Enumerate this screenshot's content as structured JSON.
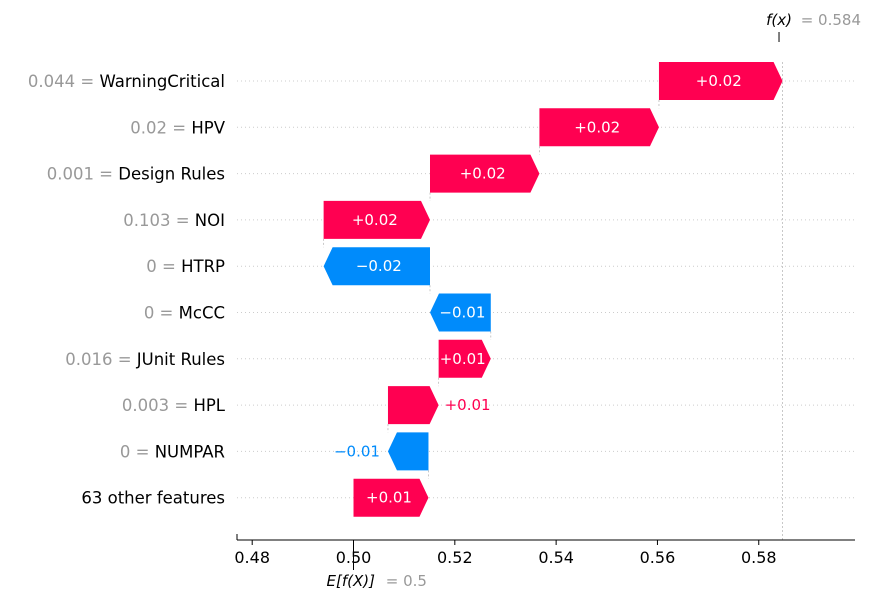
{
  "chart_data": {
    "type": "waterfall",
    "title": "",
    "xlabel": "",
    "ylabel": "",
    "xlim": [
      0.477,
      0.599
    ],
    "xticks": [
      0.48,
      0.5,
      0.52,
      0.54,
      0.56,
      0.58
    ],
    "xtick_labels": [
      "0.48",
      "0.50",
      "0.52",
      "0.54",
      "0.56",
      "0.58"
    ],
    "base_value": 0.5,
    "base_label": "E[f(X)]",
    "base_value_text": "= 0.5",
    "output_value": 0.584,
    "output_label": "f(x)",
    "output_value_text": "= 0.584",
    "features": [
      {
        "value_text": "0.044 =",
        "name": "WarningCritical",
        "shap": 0.0244,
        "label": "+0.02",
        "label_inside": true
      },
      {
        "value_text": "0.02 =",
        "name": "HPV",
        "shap": 0.0236,
        "label": "+0.02",
        "label_inside": true
      },
      {
        "value_text": "0.001 =",
        "name": "Design Rules",
        "shap": 0.0216,
        "label": "+0.02",
        "label_inside": true
      },
      {
        "value_text": "0.103 =",
        "name": "NOI",
        "shap": 0.021,
        "label": "+0.02",
        "label_inside": true
      },
      {
        "value_text": "0 =",
        "name": "HTRP",
        "shap": -0.021,
        "label": "−0.02",
        "label_inside": true
      },
      {
        "value_text": "0 =",
        "name": "McCC",
        "shap": -0.012,
        "label": "−0.01",
        "label_inside": true
      },
      {
        "value_text": "0.016 =",
        "name": "JUnit Rules",
        "shap": 0.0103,
        "label": "+0.01",
        "label_inside": true
      },
      {
        "value_text": "0.003 =",
        "name": "HPL",
        "shap": 0.01,
        "label": "+0.01",
        "label_inside": false
      },
      {
        "value_text": "0 =",
        "name": "NUMPAR",
        "shap": -0.008,
        "label": "−0.01",
        "label_inside": false
      },
      {
        "value_text": "",
        "name": "63 other features",
        "shap": 0.0148,
        "label": "+0.01",
        "label_inside": true
      }
    ],
    "colors": {
      "positive": "#ff0051",
      "negative": "#008bfb",
      "value_gray": "#999999",
      "text": "#000000",
      "grid": "#cccccc"
    }
  }
}
